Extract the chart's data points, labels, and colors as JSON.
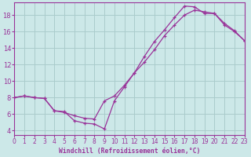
{
  "xlabel": "Windchill (Refroidissement éolien,°C)",
  "bg_color": "#cce8e8",
  "grid_color": "#aacccc",
  "line_color": "#993399",
  "xlim": [
    0,
    23
  ],
  "ylim": [
    3.5,
    19.5
  ],
  "xticks": [
    0,
    1,
    2,
    3,
    4,
    5,
    6,
    7,
    8,
    9,
    10,
    11,
    12,
    13,
    14,
    15,
    16,
    17,
    18,
    19,
    20,
    21,
    22,
    23
  ],
  "yticks": [
    4,
    6,
    8,
    10,
    12,
    14,
    16,
    18
  ],
  "series1_x": [
    0,
    1,
    2,
    3,
    4,
    5,
    6,
    7,
    8,
    9,
    10,
    11,
    12,
    13,
    14,
    15,
    16,
    17,
    18,
    19,
    20,
    21,
    22,
    23
  ],
  "series1_y": [
    8,
    8.2,
    8.0,
    7.9,
    6.4,
    6.3,
    5.2,
    4.9,
    4.8,
    4.2,
    7.6,
    9.3,
    11.0,
    13.0,
    14.8,
    16.2,
    17.7,
    19.1,
    19.0,
    18.2,
    18.2,
    17.0,
    16.1,
    14.9
  ],
  "series2_x": [
    0,
    1,
    2,
    3,
    4,
    5,
    6,
    7,
    8,
    9,
    10,
    11,
    12,
    13,
    14,
    15,
    16,
    17,
    18,
    19,
    20,
    21,
    22,
    23
  ],
  "series2_y": [
    8,
    8.2,
    8.0,
    7.9,
    6.4,
    6.2,
    5.8,
    5.5,
    5.4,
    7.6,
    8.2,
    9.5,
    11.0,
    12.3,
    13.8,
    15.5,
    16.8,
    18.0,
    18.6,
    18.4,
    18.2,
    16.8,
    16.0,
    14.9
  ]
}
